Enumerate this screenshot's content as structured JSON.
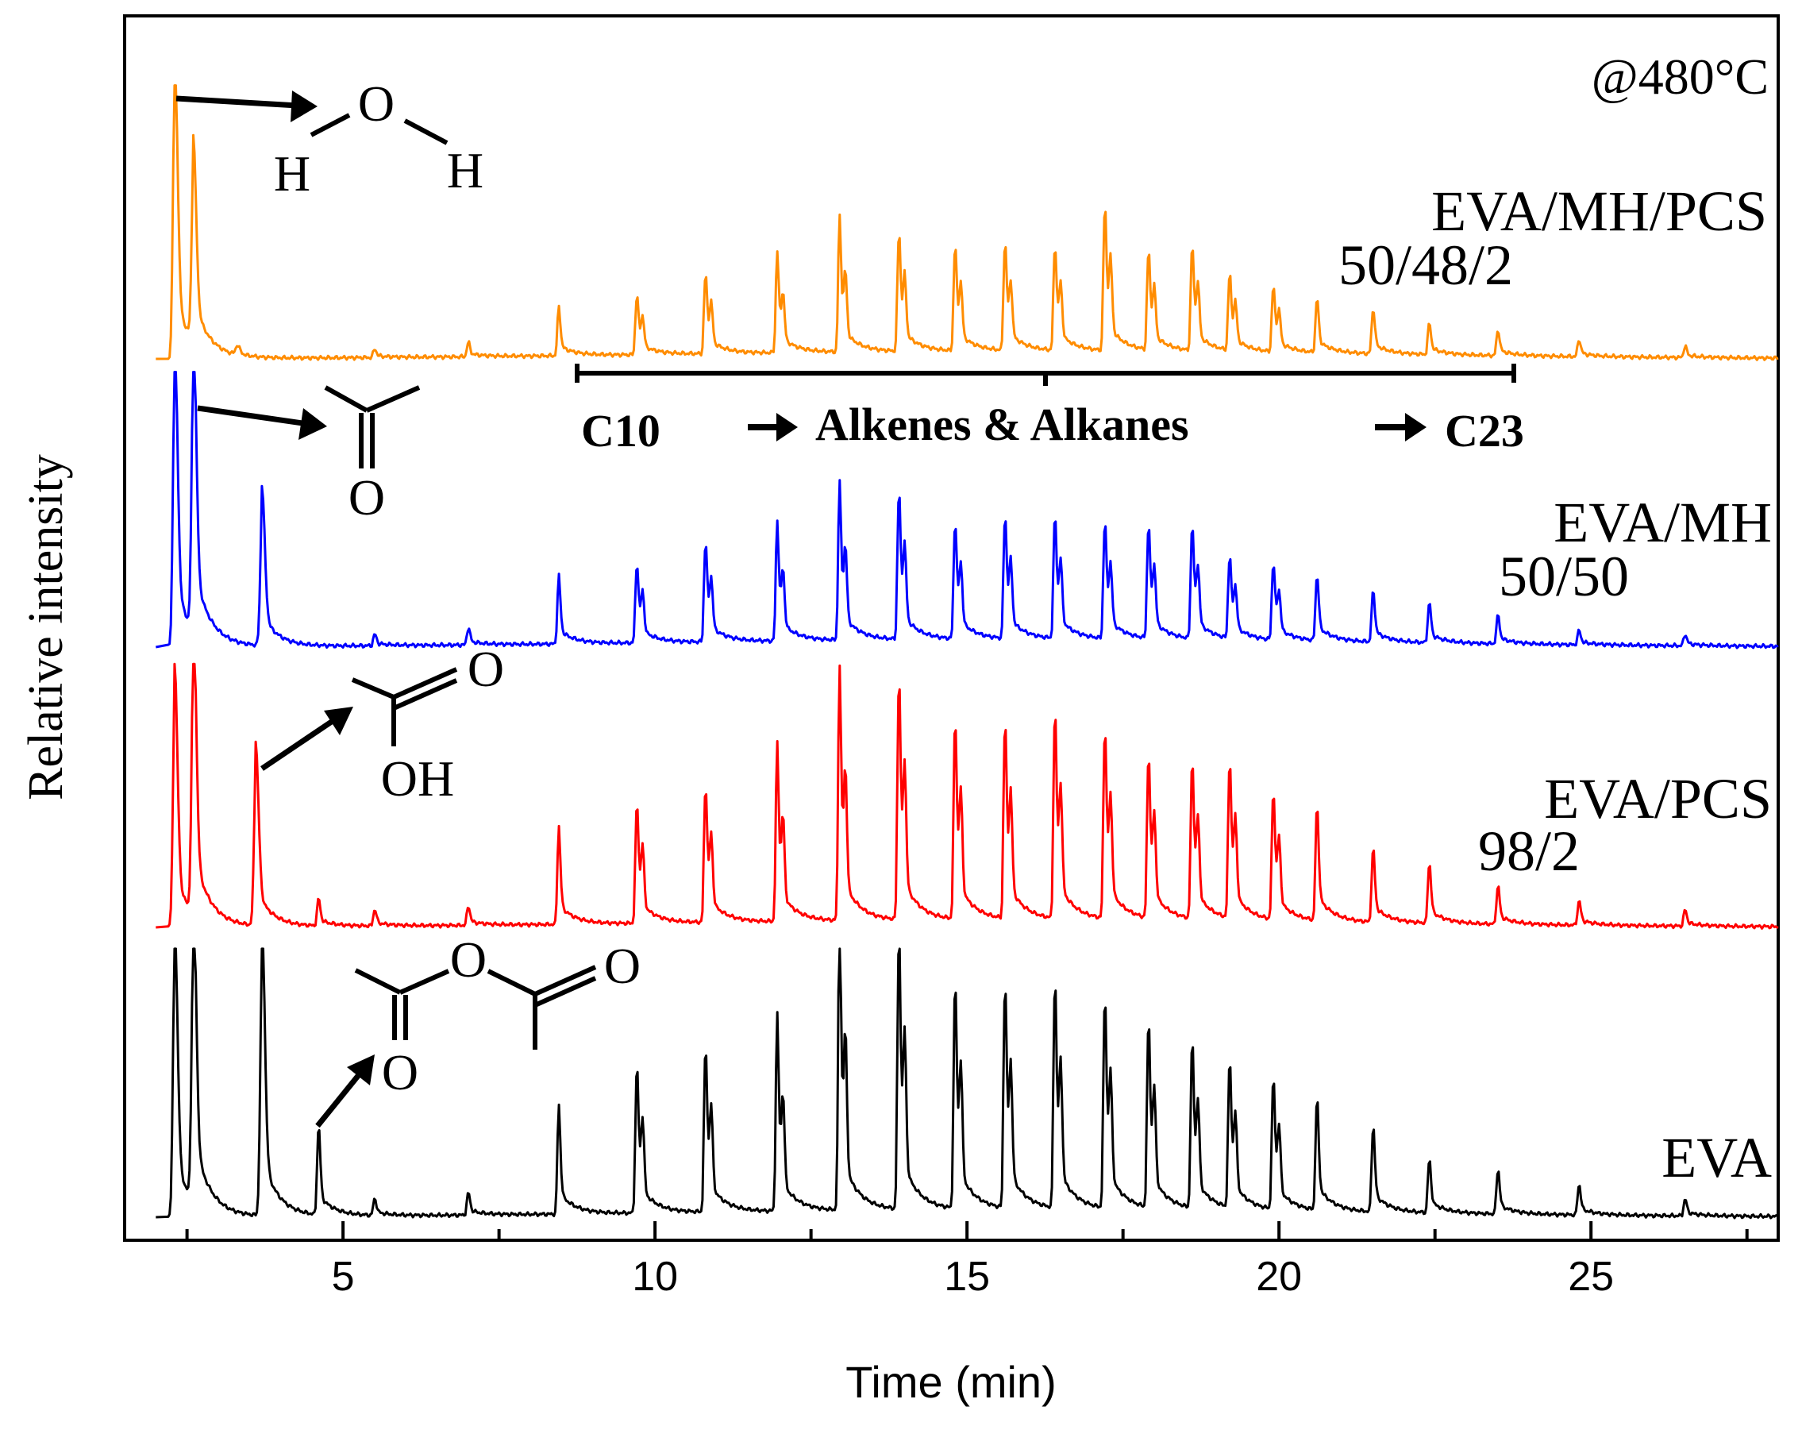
{
  "chart_data": {
    "type": "line",
    "title": "",
    "annotation_top_right": "@480°C",
    "xlabel": "Time (min)",
    "ylabel": "Relative intensity",
    "xlim": [
      1.5,
      28
    ],
    "x_ticks": [
      5,
      10,
      15,
      20,
      25
    ],
    "y_ticks": [],
    "grid": false,
    "legend": "none (inline labels at right)",
    "colors": {
      "EVA/MH/PCS": "#ff8c00",
      "EVA/MH": "#0000ff",
      "EVA/PCS": "#ff0000",
      "EVA": "#000000",
      "axis": "#000000"
    },
    "series": [
      {
        "name": "EVA",
        "label_line1": "EVA",
        "label_line2": "",
        "color": "#000000",
        "peaks": [
          [
            2.3,
            0.96
          ],
          [
            2.6,
            1.0
          ],
          [
            3.7,
            0.95
          ],
          [
            4.6,
            0.32
          ],
          [
            5.5,
            0.06
          ],
          [
            7.0,
            0.08
          ],
          [
            8.45,
            0.36
          ],
          [
            9.7,
            0.53
          ],
          [
            10.8,
            0.59
          ],
          [
            11.95,
            0.65
          ],
          [
            12.95,
            0.99
          ],
          [
            13.9,
            0.99
          ],
          [
            14.8,
            0.81
          ],
          [
            15.6,
            0.81
          ],
          [
            16.4,
            0.82
          ],
          [
            17.2,
            0.76
          ],
          [
            17.9,
            0.67
          ],
          [
            18.6,
            0.6
          ],
          [
            19.2,
            0.53
          ],
          [
            19.9,
            0.47
          ],
          [
            20.6,
            0.4
          ],
          [
            21.5,
            0.31
          ],
          [
            22.4,
            0.19
          ],
          [
            23.5,
            0.16
          ],
          [
            24.8,
            0.11
          ],
          [
            26.5,
            0.06
          ]
        ],
        "peak_annotation": "acetic anhydride"
      },
      {
        "name": "EVA/PCS",
        "label_line1": "EVA/PCS",
        "label_line2": "98/2",
        "color": "#ff0000",
        "peaks": [
          [
            2.3,
            0.85
          ],
          [
            2.6,
            1.0
          ],
          [
            3.6,
            0.59
          ],
          [
            4.6,
            0.1
          ],
          [
            5.5,
            0.06
          ],
          [
            7.0,
            0.07
          ],
          [
            8.45,
            0.33
          ],
          [
            9.7,
            0.44
          ],
          [
            10.8,
            0.5
          ],
          [
            11.95,
            0.6
          ],
          [
            12.95,
            0.86
          ],
          [
            13.9,
            0.89
          ],
          [
            14.8,
            0.73
          ],
          [
            15.6,
            0.72
          ],
          [
            16.4,
            0.76
          ],
          [
            17.2,
            0.7
          ],
          [
            17.9,
            0.6
          ],
          [
            18.6,
            0.58
          ],
          [
            19.2,
            0.58
          ],
          [
            19.9,
            0.47
          ],
          [
            20.6,
            0.42
          ],
          [
            21.5,
            0.27
          ],
          [
            22.4,
            0.22
          ],
          [
            23.5,
            0.14
          ],
          [
            24.8,
            0.09
          ],
          [
            26.5,
            0.06
          ]
        ],
        "peak_annotation": "acetic acid"
      },
      {
        "name": "EVA/MH",
        "label_line1": "EVA/MH",
        "label_line2": "50/50",
        "color": "#0000ff",
        "peaks": [
          [
            2.3,
            1.0
          ],
          [
            2.6,
            0.97
          ],
          [
            3.7,
            0.49
          ],
          [
            5.5,
            0.04
          ],
          [
            7.0,
            0.06
          ],
          [
            8.45,
            0.22
          ],
          [
            9.7,
            0.28
          ],
          [
            10.8,
            0.35
          ],
          [
            11.95,
            0.39
          ],
          [
            12.95,
            0.51
          ],
          [
            13.9,
            0.52
          ],
          [
            14.8,
            0.41
          ],
          [
            15.6,
            0.43
          ],
          [
            16.4,
            0.43
          ],
          [
            17.2,
            0.41
          ],
          [
            17.9,
            0.4
          ],
          [
            18.6,
            0.4
          ],
          [
            19.2,
            0.29
          ],
          [
            19.9,
            0.27
          ],
          [
            20.6,
            0.23
          ],
          [
            21.5,
            0.18
          ],
          [
            22.4,
            0.14
          ],
          [
            23.5,
            0.1
          ],
          [
            24.8,
            0.05
          ],
          [
            26.5,
            0.04
          ]
        ],
        "peak_annotation": "acetone"
      },
      {
        "name": "EVA/MH/PCS",
        "label_line1": "EVA/MH/PCS",
        "label_line2": "50/48/2",
        "color": "#ff8c00",
        "peaks": [
          [
            2.3,
            1.0
          ],
          [
            2.6,
            0.63
          ],
          [
            3.3,
            0.03
          ],
          [
            5.5,
            0.03
          ],
          [
            7.0,
            0.05
          ],
          [
            8.45,
            0.16
          ],
          [
            9.7,
            0.21
          ],
          [
            10.8,
            0.28
          ],
          [
            11.95,
            0.33
          ],
          [
            12.95,
            0.44
          ],
          [
            13.9,
            0.42
          ],
          [
            14.8,
            0.37
          ],
          [
            15.6,
            0.38
          ],
          [
            16.4,
            0.37
          ],
          [
            17.2,
            0.51
          ],
          [
            17.9,
            0.35
          ],
          [
            18.6,
            0.37
          ],
          [
            19.2,
            0.27
          ],
          [
            19.9,
            0.23
          ],
          [
            20.6,
            0.19
          ],
          [
            21.5,
            0.16
          ],
          [
            22.4,
            0.11
          ],
          [
            23.5,
            0.09
          ],
          [
            24.8,
            0.06
          ],
          [
            26.5,
            0.04
          ]
        ],
        "peak_annotation": "water"
      }
    ],
    "bracket": {
      "x_start": 8.5,
      "x_end": 23.6,
      "label_start": "C10",
      "label_middle": "Alkenes & Alkanes",
      "label_end": "C23"
    },
    "molecule_labels": {
      "water_O": "O",
      "water_H1": "H",
      "water_H2": "H",
      "acetone_O": "O",
      "acid_O": "O",
      "acid_OH": "OH",
      "anhydride_O_bridge": "O",
      "anhydride_O_left": "O",
      "anhydride_O_right": "O"
    }
  }
}
